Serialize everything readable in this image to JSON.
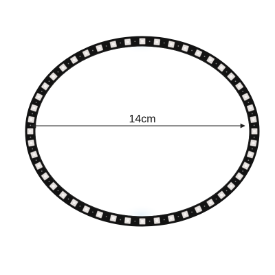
{
  "product": {
    "dimension_label": "14cm",
    "led_count": 48
  },
  "colors": {
    "background": "#ffffff",
    "pcb": "#131313",
    "pcb_edge": "#2a2a2a",
    "led_body": "#e9e5e3",
    "led_lens": "#f6f3f1",
    "led_shadow": "#9a9592",
    "dimension_line": "#222222",
    "watermark": "#dcebf6"
  }
}
